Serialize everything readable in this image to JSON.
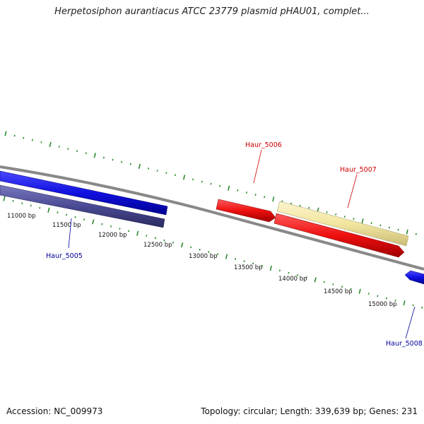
{
  "title": "Herpetosiphon aurantiacus ATCC 23779 plasmid pHAU01, complet...",
  "accession_text": "Accession: NC_009973",
  "summary_text": "Topology: circular; Length: 339,639 bp; Genes: 231",
  "colors": {
    "backbone": "#888888",
    "tick": "#2e8b2e",
    "forward_label": "#cc0000",
    "reverse_label": "#000099",
    "gene_blue": "#1010e0",
    "gene_slate": "#4a4a94",
    "gene_red": "#ee1010",
    "gene_yellow": "#f2e6a0"
  },
  "ruler": {
    "unit": "bp",
    "labels": [
      "11000 bp",
      "11500 bp",
      "12000 bp",
      "12500 bp",
      "13000 bp",
      "13500 bp",
      "14000 bp",
      "14500 bp",
      "15000 bp"
    ]
  },
  "genes": [
    {
      "name": "Haur_5005",
      "strand": "reverse"
    },
    {
      "name": "Haur_5006",
      "strand": "forward"
    },
    {
      "name": "Haur_5007",
      "strand": "forward"
    },
    {
      "name": "Haur_5008",
      "strand": "reverse"
    }
  ]
}
